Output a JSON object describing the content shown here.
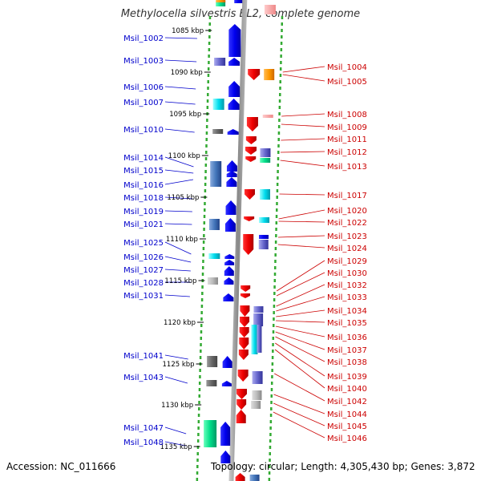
{
  "header": {
    "title": "Methylocella silvestris BL2, complete genome"
  },
  "footer": {
    "accession": "Accession: NC_011666",
    "topology": "Topology: circular; Length: 4,305,430 bp; Genes: 3,872"
  },
  "scale_labels": [
    "1085 kbp",
    "1090 kbp",
    "1095 kbp",
    "1100 kbp",
    "1105 kbp",
    "1110 kbp",
    "1115 kbp",
    "1120 kbp",
    "1125 kbp",
    "1130 kbp",
    "1135 kbp"
  ],
  "left_labels": [
    "Msil_1002",
    "Msil_1003",
    "Msil_1006",
    "Msil_1007",
    "Msil_1010",
    "Msil_1014",
    "Msil_1015",
    "Msil_1016",
    "Msil_1018",
    "Msil_1019",
    "Msil_1021",
    "Msil_1025",
    "Msil_1026",
    "Msil_1027",
    "Msil_1028",
    "Msil_1031",
    "Msil_1041",
    "Msil_1043",
    "Msil_1047",
    "Msil_1048"
  ],
  "right_labels": [
    "Msil_1004",
    "Msil_1005",
    "Msil_1008",
    "Msil_1009",
    "Msil_1011",
    "Msil_1012",
    "Msil_1013",
    "Msil_1017",
    "Msil_1020",
    "Msil_1022",
    "Msil_1023",
    "Msil_1024",
    "Msil_1029",
    "Msil_1030",
    "Msil_1032",
    "Msil_1033",
    "Msil_1034",
    "Msil_1035",
    "Msil_1036",
    "Msil_1037",
    "Msil_1038",
    "Msil_1039",
    "Msil_1040",
    "Msil_1042",
    "Msil_1044",
    "Msil_1045",
    "Msil_1046"
  ],
  "colors": {
    "left_label": "#0000cc",
    "right_label": "#cc0000",
    "backbone": "#999999",
    "tick": "#33aa33"
  }
}
